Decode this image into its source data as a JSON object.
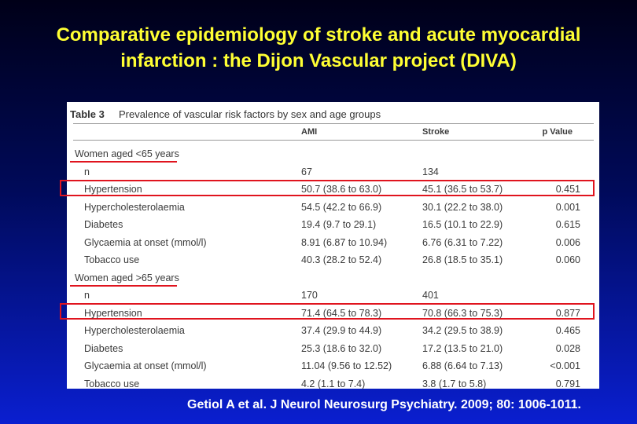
{
  "title": "Comparative epidemiology of stroke and acute myocardial infarction : the Dijon Vascular project (DIVA)",
  "table": {
    "caption_label": "Table 3",
    "caption": "Prevalence of vascular risk factors by sex and age groups",
    "columns": [
      "AMI",
      "Stroke",
      "p Value"
    ],
    "groups": [
      {
        "label": "Women aged <65 years",
        "rows": [
          [
            "n",
            "67",
            "134"
          ],
          [
            "Hypertension",
            "50.7 (38.6 to 63.0)",
            "45.1 (36.5 to 53.7)",
            "0.451"
          ],
          [
            "Hypercholesterolaemia",
            "54.5 (42.2 to 66.9)",
            "30.1 (22.2 to 38.0)",
            "0.001"
          ],
          [
            "Diabetes",
            "19.4 (9.7 to 29.1)",
            "16.5 (10.1 to 22.9)",
            "0.615"
          ],
          [
            "Glycaemia at onset (mmol/l)",
            "8.91 (6.87 to 10.94)",
            "6.76 (6.31 to 7.22)",
            "0.006"
          ],
          [
            "Tobacco use",
            "40.3 (28.2 to 52.4)",
            "26.8 (18.5 to 35.1)",
            "0.060"
          ]
        ]
      },
      {
        "label": "Women aged >65 years",
        "rows": [
          [
            "n",
            "170",
            "401"
          ],
          [
            "Hypertension",
            "71.4 (64.5 to 78.3)",
            "70.8 (66.3 to 75.3)",
            "0.877"
          ],
          [
            "Hypercholesterolaemia",
            "37.4 (29.9 to 44.9)",
            "34.2 (29.5 to 38.9)",
            "0.465"
          ],
          [
            "Diabetes",
            "25.3 (18.6 to 32.0)",
            "17.2 (13.5 to 21.0)",
            "0.028"
          ],
          [
            "Glycaemia at onset (mmol/l)",
            "11.04 (9.56 to 12.52)",
            "6.88 (6.64 to 7.13)",
            "<0.001"
          ],
          [
            "Tobacco use",
            "4.2 (1.1 to 7.4)",
            "3.8 (1.7 to 5.8)",
            "0.791"
          ]
        ]
      }
    ]
  },
  "citation": "Getiol A et al. J Neurol Neurosurg Psychiatry. 2009; 80: 1006-1011."
}
